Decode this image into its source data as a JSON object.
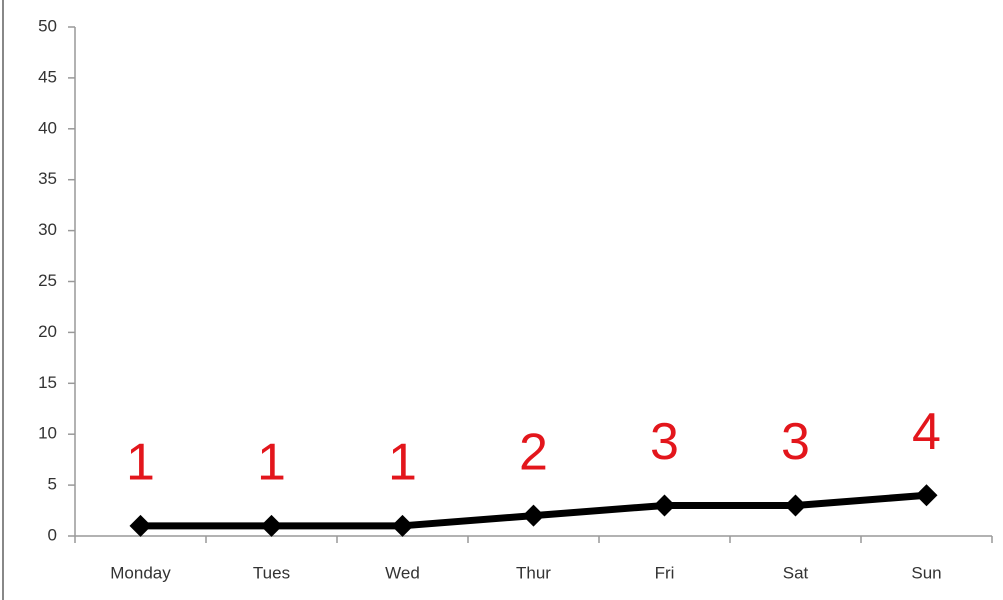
{
  "chart_data": {
    "type": "line",
    "categories": [
      "Monday",
      "Tues",
      "Wed",
      "Thur",
      "Fri",
      "Sat",
      "Sun"
    ],
    "values": [
      1,
      1,
      1,
      2,
      3,
      3,
      4
    ],
    "color": "#000000",
    "marker": "diamond",
    "data_labels": true,
    "label_color": "#e3161c",
    "ylim": [
      0,
      50
    ],
    "yticks": [
      0,
      5,
      10,
      15,
      20,
      25,
      30,
      35,
      40,
      45,
      50
    ],
    "grid": false
  }
}
